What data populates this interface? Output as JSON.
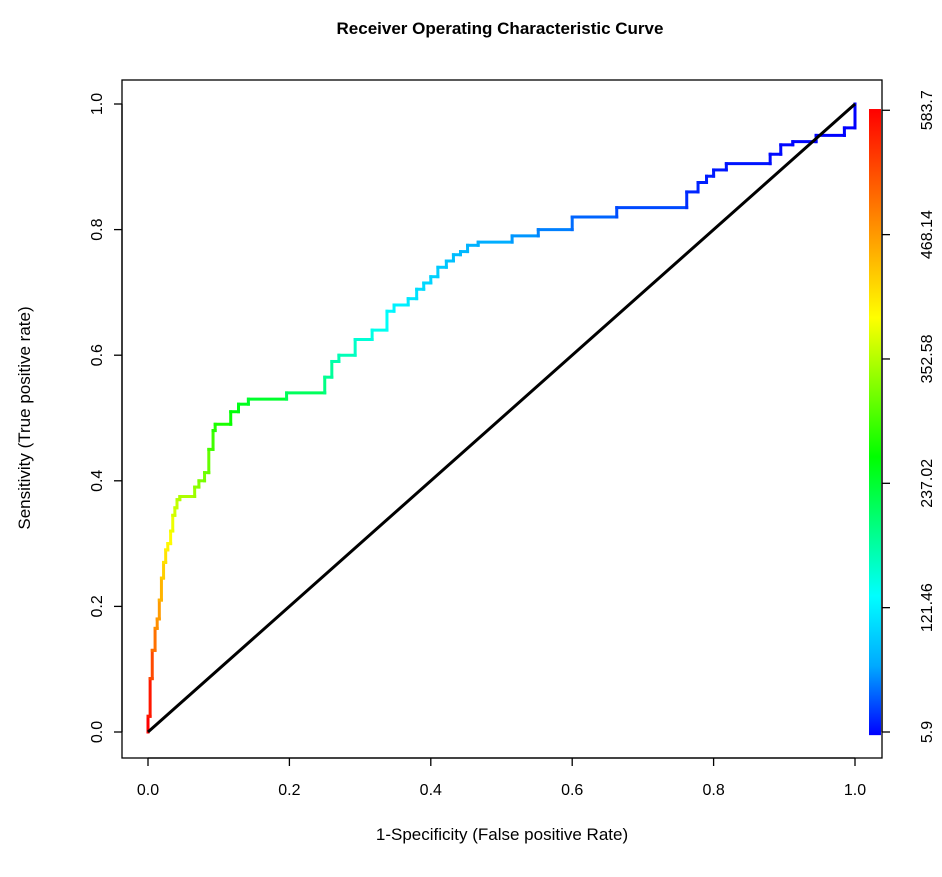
{
  "chart_data": {
    "type": "line",
    "title": "Receiver Operating Characteristic Curve",
    "xlabel": "1-Specificity (False positive Rate)",
    "ylabel": "Sensitivity (True positive rate)",
    "xlim": [
      0,
      1
    ],
    "ylim": [
      0,
      1
    ],
    "xticks": [
      0.0,
      0.2,
      0.4,
      0.6,
      0.8,
      1.0
    ],
    "yticks": [
      0.0,
      0.2,
      0.4,
      0.6,
      0.8,
      1.0
    ],
    "xtick_labels": [
      "0.0",
      "0.2",
      "0.4",
      "0.6",
      "0.8",
      "1.0"
    ],
    "ytick_labels": [
      "0.0",
      "0.2",
      "0.4",
      "0.6",
      "0.8",
      "1.0"
    ],
    "grid": false,
    "series": [
      {
        "kind": "roc-step",
        "colored_by": "threshold",
        "x": [
          0,
          0,
          0.003,
          0.003,
          0.006,
          0.006,
          0.01,
          0.01,
          0.013,
          0.013,
          0.016,
          0.016,
          0.019,
          0.019,
          0.022,
          0.022,
          0.025,
          0.025,
          0.028,
          0.028,
          0.032,
          0.032,
          0.035,
          0.035,
          0.038,
          0.038,
          0.041,
          0.041,
          0.045,
          0.045,
          0.066,
          0.066,
          0.072,
          0.072,
          0.08,
          0.08,
          0.086,
          0.086,
          0.092,
          0.092,
          0.095,
          0.095,
          0.117,
          0.117,
          0.128,
          0.128,
          0.142,
          0.142,
          0.196,
          0.196,
          0.25,
          0.25,
          0.26,
          0.26,
          0.27,
          0.27,
          0.293,
          0.293,
          0.317,
          0.317,
          0.338,
          0.338,
          0.348,
          0.348,
          0.368,
          0.368,
          0.38,
          0.38,
          0.39,
          0.39,
          0.4,
          0.4,
          0.41,
          0.41,
          0.422,
          0.422,
          0.432,
          0.432,
          0.442,
          0.442,
          0.452,
          0.452,
          0.467,
          0.467,
          0.515,
          0.515,
          0.552,
          0.552,
          0.6,
          0.6,
          0.663,
          0.663,
          0.762,
          0.762,
          0.778,
          0.778,
          0.79,
          0.79,
          0.8,
          0.8,
          0.818,
          0.818,
          0.88,
          0.88,
          0.895,
          0.895,
          0.912,
          0.912,
          0.945,
          0.945,
          0.985,
          0.985,
          1.0,
          1.0
        ],
        "y": [
          0,
          0.025,
          0.025,
          0.085,
          0.085,
          0.13,
          0.13,
          0.165,
          0.165,
          0.18,
          0.18,
          0.21,
          0.21,
          0.245,
          0.245,
          0.27,
          0.27,
          0.29,
          0.29,
          0.3,
          0.3,
          0.32,
          0.32,
          0.345,
          0.345,
          0.357,
          0.357,
          0.37,
          0.37,
          0.375,
          0.375,
          0.39,
          0.39,
          0.4,
          0.4,
          0.413,
          0.413,
          0.45,
          0.45,
          0.48,
          0.48,
          0.49,
          0.49,
          0.51,
          0.51,
          0.522,
          0.522,
          0.53,
          0.53,
          0.54,
          0.54,
          0.565,
          0.565,
          0.59,
          0.59,
          0.6,
          0.6,
          0.625,
          0.625,
          0.64,
          0.64,
          0.67,
          0.67,
          0.68,
          0.68,
          0.69,
          0.69,
          0.705,
          0.705,
          0.715,
          0.715,
          0.725,
          0.725,
          0.74,
          0.74,
          0.75,
          0.75,
          0.76,
          0.76,
          0.765,
          0.765,
          0.775,
          0.775,
          0.78,
          0.78,
          0.79,
          0.79,
          0.8,
          0.8,
          0.82,
          0.82,
          0.835,
          0.835,
          0.86,
          0.86,
          0.875,
          0.875,
          0.885,
          0.885,
          0.895,
          0.895,
          0.905,
          0.905,
          0.92,
          0.92,
          0.935,
          0.935,
          0.94,
          0.94,
          0.95,
          0.95,
          0.962,
          0.962,
          1.0
        ]
      },
      {
        "kind": "diagonal",
        "color": "#000000",
        "x": [
          0,
          1
        ],
        "y": [
          0,
          1
        ]
      }
    ],
    "colorbar": {
      "labels": [
        "5.9",
        "121.46",
        "237.02",
        "352.58",
        "468.14",
        "583.7"
      ],
      "min": 5.9,
      "max": 583.7,
      "colors": [
        "#0000ff",
        "#00aaff",
        "#00ffff",
        "#00ff80",
        "#00ff00",
        "#80ff00",
        "#ffff00",
        "#ffaa00",
        "#ff5500",
        "#ff0000"
      ]
    }
  }
}
